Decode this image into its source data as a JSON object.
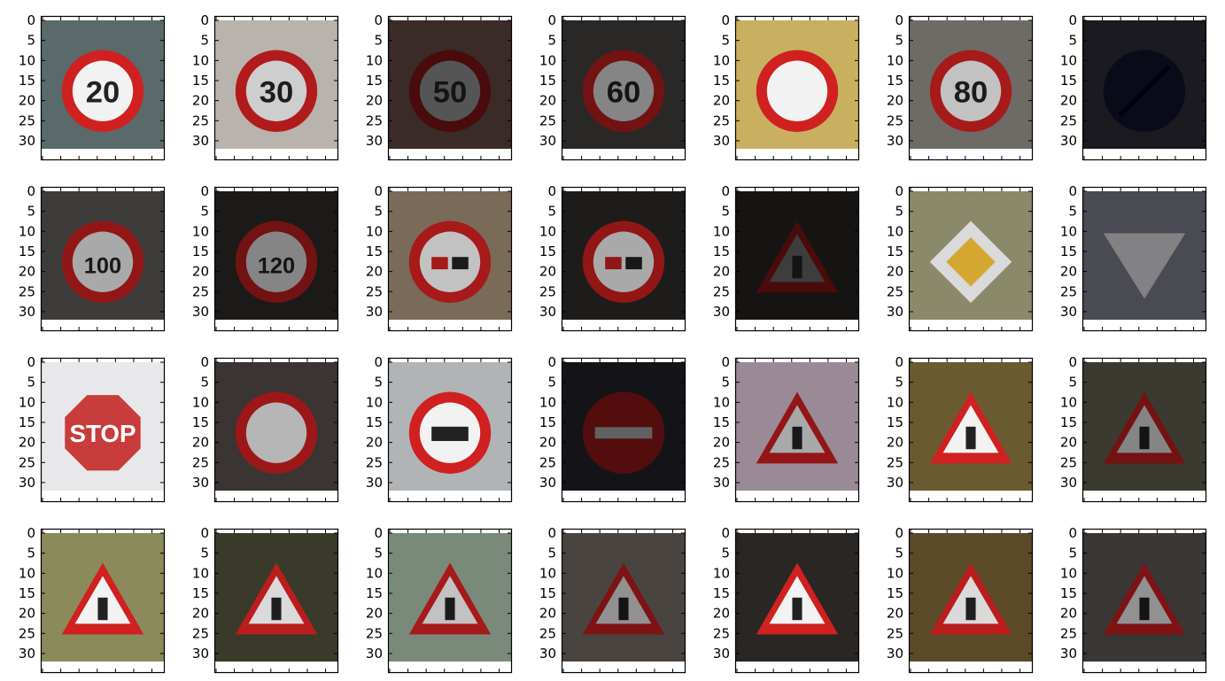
{
  "chart_data": {
    "type": "image-grid",
    "rows": 4,
    "cols": 7,
    "image_size": [
      32,
      32
    ],
    "ylim": [
      34,
      0
    ],
    "y_ticks": [
      0,
      5,
      10,
      15,
      20,
      25,
      30
    ],
    "y_tick_labels": [
      "0",
      "5",
      "10",
      "15",
      "20",
      "25",
      "30"
    ],
    "x_tick_labels_visible": false,
    "tiny_title": "",
    "panels": [
      {
        "sign": "speed20",
        "bg": "#5a6a6a",
        "bright": 1.0,
        "text": "20"
      },
      {
        "sign": "speed30",
        "bg": "#b9b3ad",
        "bright": 0.85,
        "text": "30"
      },
      {
        "sign": "speed50",
        "bg": "#3a2a28",
        "bright": 0.35,
        "text": "50"
      },
      {
        "sign": "speed60",
        "bg": "#2a2826",
        "bright": 0.55,
        "text": "60"
      },
      {
        "sign": "speed_bright",
        "bg": "#c8b060",
        "bright": 1.0,
        "text": "..."
      },
      {
        "sign": "speed80",
        "bg": "#6e6a66",
        "bright": 0.8,
        "text": "80"
      },
      {
        "sign": "end_limit",
        "bg": "#1a1a20",
        "bright": 0.3,
        "text": ""
      },
      {
        "sign": "speed100",
        "bg": "#3e3c3a",
        "bright": 0.7,
        "text": "100"
      },
      {
        "sign": "speed120",
        "bg": "#1c1a18",
        "bright": 0.55,
        "text": "120"
      },
      {
        "sign": "no_passing",
        "bg": "#7a6a58",
        "bright": 0.8,
        "text": ""
      },
      {
        "sign": "no_passing_trucks",
        "bg": "#1e1c1a",
        "bright": 0.7,
        "text": ""
      },
      {
        "sign": "right_of_way",
        "bg": "#161412",
        "bright": 0.25,
        "text": ""
      },
      {
        "sign": "priority_road",
        "bg": "#8a8a6a",
        "bright": 0.9,
        "text": ""
      },
      {
        "sign": "yield",
        "bg": "#4a4a52",
        "bright": 0.6,
        "text": ""
      },
      {
        "sign": "stop",
        "bg": "#e8e8ea",
        "bright": 1.0,
        "text": "STOP"
      },
      {
        "sign": "no_vehicles",
        "bg": "#3a3432",
        "bright": 0.75,
        "text": ""
      },
      {
        "sign": "no_trucks",
        "bg": "#b0b4b6",
        "bright": 1.0,
        "text": ""
      },
      {
        "sign": "no_entry",
        "bg": "#141418",
        "bright": 0.4,
        "text": ""
      },
      {
        "sign": "general_caution",
        "bg": "#9a8a96",
        "bright": 0.7,
        "text": ""
      },
      {
        "sign": "curve_left",
        "bg": "#6a5a30",
        "bright": 1.0,
        "text": ""
      },
      {
        "sign": "curve_right",
        "bg": "#3a3a30",
        "bright": 0.55,
        "text": ""
      },
      {
        "sign": "double_curve",
        "bg": "#8a8a5a",
        "bright": 1.0,
        "text": ""
      },
      {
        "sign": "bumpy_road",
        "bg": "#3a3a2a",
        "bright": 0.9,
        "text": ""
      },
      {
        "sign": "slippery_road",
        "bg": "#7a8a7a",
        "bright": 0.8,
        "text": ""
      },
      {
        "sign": "narrows",
        "bg": "#4a4440",
        "bright": 0.6,
        "text": ""
      },
      {
        "sign": "road_work",
        "bg": "#2a2624",
        "bright": 1.0,
        "text": ""
      },
      {
        "sign": "traffic_signals",
        "bg": "#5a4a28",
        "bright": 0.9,
        "text": ""
      },
      {
        "sign": "pedestrians",
        "bg": "#3a3634",
        "bright": 0.6,
        "text": ""
      }
    ]
  }
}
